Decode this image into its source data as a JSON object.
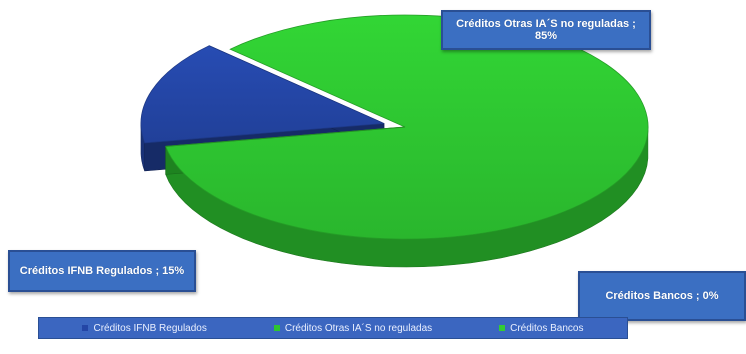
{
  "chart_data": {
    "type": "pie",
    "categories": [
      "Créditos IFNB Regulados",
      "Créditos Otras IA´S no reguladas",
      "Créditos Bancos"
    ],
    "values": [
      15,
      85,
      0
    ],
    "unit": "%",
    "three_d": true,
    "legend_position": "bottom",
    "colors": [
      "#2446a6",
      "#2ec631",
      "#33cc33"
    ],
    "data_labels": {
      "otras": "Créditos Otras IA´S no reguladas ; 85%",
      "ifnb": "Créditos IFNB Regulados ; 15%",
      "bancos": "Créditos Bancos ; 0%"
    },
    "legend": [
      {
        "label": "Créditos IFNB Regulados",
        "color": "#2446a6"
      },
      {
        "label": "Créditos Otras IA´S no reguladas",
        "color": "#2ec631"
      },
      {
        "label": "Créditos Bancos",
        "color": "#33cc33"
      }
    ]
  }
}
